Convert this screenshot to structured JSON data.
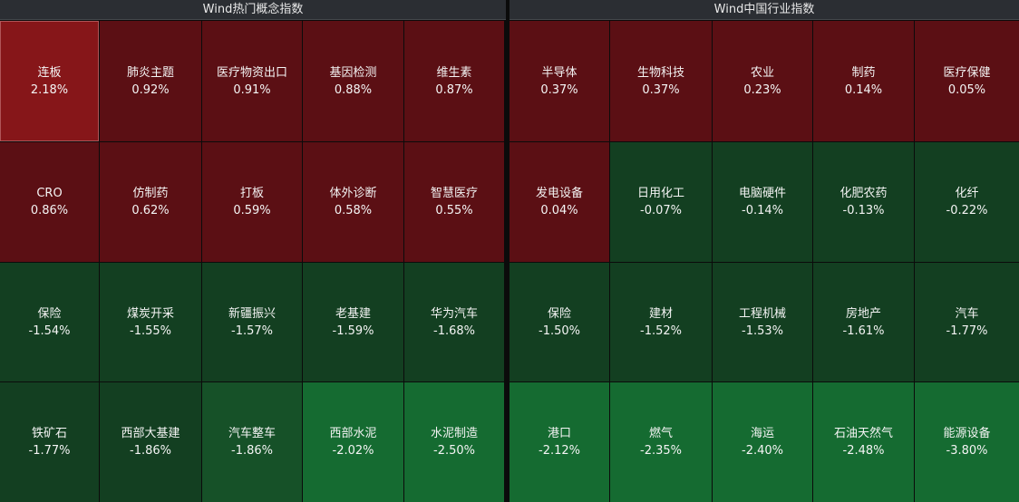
{
  "colors": {
    "up_strong": "#861619",
    "up": "#5b0f14",
    "down": "#133f21",
    "down_medium": "#165128",
    "down_strong": "#156b31"
  },
  "left_panel": {
    "title": "Wind热门概念指数",
    "tiles": [
      {
        "name": "连板",
        "change": "2.18%"
      },
      {
        "name": "肺炎主题",
        "change": "0.92%"
      },
      {
        "name": "医疗物资出口",
        "change": "0.91%"
      },
      {
        "name": "基因检测",
        "change": "0.88%"
      },
      {
        "name": "维生素",
        "change": "0.87%"
      },
      {
        "name": "CRO",
        "change": "0.86%"
      },
      {
        "name": "仿制药",
        "change": "0.62%"
      },
      {
        "name": "打板",
        "change": "0.59%"
      },
      {
        "name": "体外诊断",
        "change": "0.58%"
      },
      {
        "name": "智慧医疗",
        "change": "0.55%"
      },
      {
        "name": "保险",
        "change": "-1.54%"
      },
      {
        "name": "煤炭开采",
        "change": "-1.55%"
      },
      {
        "name": "新疆振兴",
        "change": "-1.57%"
      },
      {
        "name": "老基建",
        "change": "-1.59%"
      },
      {
        "name": "华为汽车",
        "change": "-1.68%"
      },
      {
        "name": "铁矿石",
        "change": "-1.77%"
      },
      {
        "name": "西部大基建",
        "change": "-1.86%"
      },
      {
        "name": "汽车整车",
        "change": "-1.86%"
      },
      {
        "name": "西部水泥",
        "change": "-2.02%"
      },
      {
        "name": "水泥制造",
        "change": "-2.50%"
      }
    ]
  },
  "right_panel": {
    "title": "Wind中国行业指数",
    "tiles": [
      {
        "name": "半导体",
        "change": "0.37%"
      },
      {
        "name": "生物科技",
        "change": "0.37%"
      },
      {
        "name": "农业",
        "change": "0.23%"
      },
      {
        "name": "制药",
        "change": "0.14%"
      },
      {
        "name": "医疗保健",
        "change": "0.05%"
      },
      {
        "name": "发电设备",
        "change": "0.04%"
      },
      {
        "name": "日用化工",
        "change": "-0.07%"
      },
      {
        "name": "电脑硬件",
        "change": "-0.14%"
      },
      {
        "name": "化肥农药",
        "change": "-0.13%"
      },
      {
        "name": "化纤",
        "change": "-0.22%"
      },
      {
        "name": "保险",
        "change": "-1.50%"
      },
      {
        "name": "建材",
        "change": "-1.52%"
      },
      {
        "name": "工程机械",
        "change": "-1.53%"
      },
      {
        "name": "房地产",
        "change": "-1.61%"
      },
      {
        "name": "汽车",
        "change": "-1.77%"
      },
      {
        "name": "港口",
        "change": "-2.12%"
      },
      {
        "name": "燃气",
        "change": "-2.35%"
      },
      {
        "name": "海运",
        "change": "-2.40%"
      },
      {
        "name": "石油天然气",
        "change": "-2.48%"
      },
      {
        "name": "能源设备",
        "change": "-3.80%"
      }
    ]
  }
}
